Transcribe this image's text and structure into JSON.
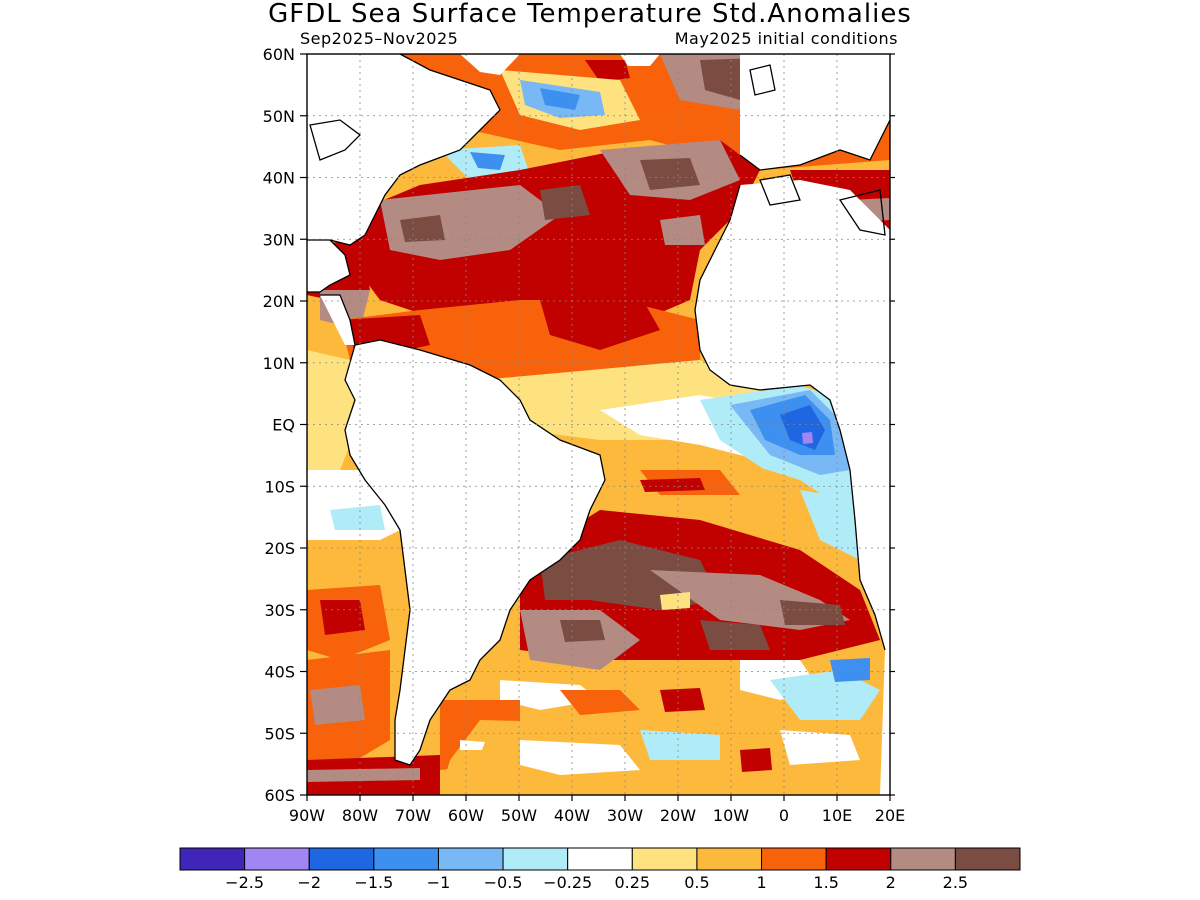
{
  "title": "GFDL Sea Surface Temperature Std.Anomalies",
  "subtitle_left": "Sep2025–Nov2025",
  "subtitle_right": "May2025 initial conditions",
  "lat_labels": [
    "60N",
    "50N",
    "40N",
    "30N",
    "20N",
    "10N",
    "EQ",
    "10S",
    "20S",
    "30S",
    "40S",
    "50S",
    "60S"
  ],
  "lon_labels": [
    "90W",
    "80W",
    "70W",
    "60W",
    "50W",
    "40W",
    "30W",
    "20W",
    "10W",
    "0",
    "10E",
    "20E"
  ],
  "colorbar": {
    "colors": [
      "#3f25b8",
      "#a085f3",
      "#1f66e3",
      "#3d90f0",
      "#78b8f5",
      "#b0ecf8",
      "#ffffff",
      "#fee27f",
      "#fcb93b",
      "#f8620b",
      "#c10000",
      "#b48b82",
      "#7a4c42"
    ],
    "labels": [
      "−2.5",
      "−2",
      "−1.5",
      "−1",
      "−0.5",
      "−0.25",
      "0.25",
      "0.5",
      "1",
      "1.5",
      "2",
      "2.5"
    ]
  },
  "map_data": {
    "region": {
      "lon_range": [
        "90W",
        "20E"
      ],
      "lat_range": [
        "60S",
        "60N"
      ]
    },
    "grid": "dotted",
    "features": [
      {
        "name": "North Atlantic warm anomaly",
        "level": "1.5 to 2.5"
      },
      {
        "name": "Equatorial eastern Atlantic cool anomaly",
        "level": "-0.5 to -1.5"
      },
      {
        "name": "South Atlantic subtropical warm anomaly",
        "level": "2 to 2.5+"
      }
    ]
  }
}
